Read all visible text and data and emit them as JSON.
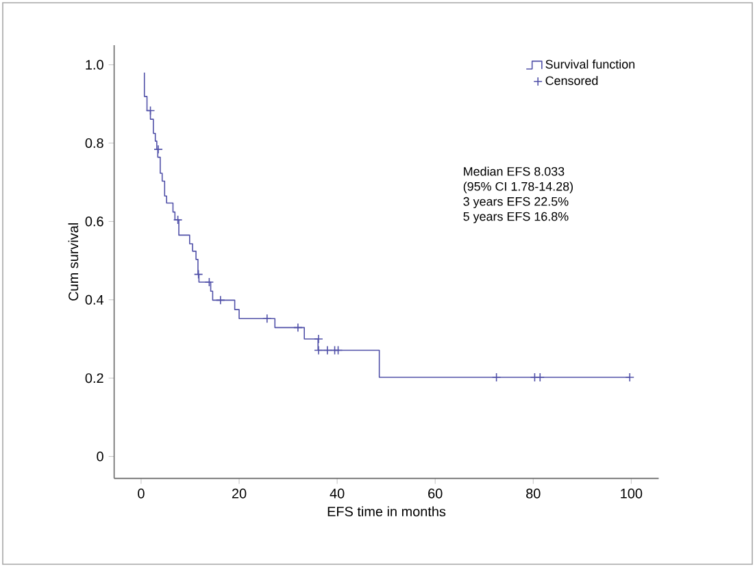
{
  "chart_data": {
    "type": "step",
    "xlabel": "EFS time in months",
    "ylabel": "Cum survival",
    "xlim": [
      -5.5,
      105.6
    ],
    "ylim": [
      -0.056,
      1.05
    ],
    "xticks": [
      0,
      20,
      40,
      60,
      80,
      100
    ],
    "yticks": [
      0,
      0.2,
      0.4,
      0.6,
      0.8,
      {
        "value": 1,
        "label": "1.0"
      }
    ],
    "legend": "top right",
    "grid": false,
    "annotations": [
      "Median EFS 8.033",
      "(95% CI 1.78-14.28)",
      "3 years EFS 22.5%",
      "5 years EFS 16.8%"
    ],
    "series": [
      {
        "name": "Survival function",
        "color": "#5050a8",
        "x": [
          0.67,
          0.67,
          1.2,
          1.9,
          2.5,
          2.9,
          3.2,
          3.4,
          3.9,
          4.3,
          4.8,
          5.2,
          6.5,
          6.9,
          7.7,
          9.9,
          10.5,
          11.2,
          11.6,
          11.8,
          14.2,
          14.6,
          19.1,
          20.0,
          27.3,
          33.3,
          36.1,
          48.6,
          99.7
        ],
        "values": [
          0.98,
          0.919,
          0.883,
          0.861,
          0.825,
          0.805,
          0.784,
          0.764,
          0.723,
          0.703,
          0.665,
          0.647,
          0.624,
          0.604,
          0.565,
          0.543,
          0.524,
          0.503,
          0.465,
          0.445,
          0.422,
          0.399,
          0.375,
          0.352,
          0.329,
          0.3,
          0.271,
          0.202,
          0.202
        ]
      },
      {
        "name": "Censored",
        "type": "scatter",
        "marker": "cross",
        "color": "#5050a8",
        "x": [
          1.9,
          3.5,
          7.5,
          11.7,
          13.9,
          16.2,
          25.7,
          32.0,
          36.2,
          36.2,
          38.0,
          39.5,
          40.2,
          72.5,
          80.3,
          81.4,
          99.7
        ],
        "values": [
          0.883,
          0.784,
          0.604,
          0.465,
          0.445,
          0.399,
          0.352,
          0.329,
          0.3,
          0.271,
          0.271,
          0.271,
          0.271,
          0.202,
          0.202,
          0.202,
          0.202
        ]
      }
    ]
  }
}
